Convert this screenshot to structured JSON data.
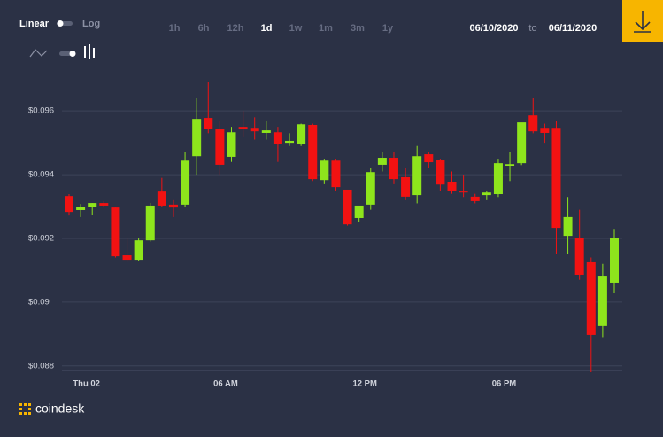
{
  "controls": {
    "scale_options": [
      "Linear",
      "Log"
    ],
    "timeframes": [
      "1h",
      "6h",
      "12h",
      "1d",
      "1w",
      "1m",
      "3m",
      "1y"
    ],
    "active_timeframe": "1d",
    "date_from": "06/10/2020",
    "date_separator": "to",
    "date_to": "06/11/2020"
  },
  "chart_data": {
    "type": "candlestick",
    "categories": [
      null,
      "Thu 02",
      null,
      null,
      null,
      null,
      null,
      null,
      null,
      null,
      null,
      null,
      null,
      "06 AM",
      null,
      null,
      null,
      null,
      null,
      null,
      null,
      null,
      null,
      null,
      null,
      "12 PM",
      null,
      null,
      null,
      null,
      null,
      null,
      null,
      null,
      null,
      null,
      null,
      "06 PM",
      null,
      null,
      null,
      null,
      null,
      null,
      null,
      null,
      null,
      null
    ],
    "open": [
      0.09333,
      0.09289,
      0.093,
      0.09311,
      0.09297,
      0.09147,
      0.09133,
      0.09194,
      0.09347,
      0.09306,
      0.09306,
      0.09458,
      0.09578,
      0.09542,
      0.09456,
      0.0955,
      0.09547,
      0.09531,
      0.09533,
      0.095,
      0.09497,
      0.09556,
      0.09383,
      0.09444,
      0.09353,
      0.09264,
      0.09306,
      0.09431,
      0.09453,
      0.09392,
      0.09336,
      0.09464,
      0.09447,
      0.09378,
      0.09347,
      0.09331,
      0.09336,
      0.09339,
      0.09428,
      0.09436,
      0.09586,
      0.09547,
      0.09547,
      0.09208,
      0.092,
      0.09125,
      0.08925,
      0.09061
    ],
    "high": [
      0.09339,
      0.09308,
      0.09311,
      0.09317,
      0.09297,
      0.092,
      0.092,
      0.09311,
      0.0939,
      0.0932,
      0.0947,
      0.0964,
      0.0969,
      0.0957,
      0.0955,
      0.096,
      0.0958,
      0.0957,
      0.0955,
      0.0953,
      0.0956,
      0.0956,
      0.0945,
      0.0945,
      0.09353,
      0.093,
      0.0942,
      0.0947,
      0.0947,
      0.0942,
      0.0949,
      0.0947,
      0.0945,
      0.0941,
      0.094,
      0.0934,
      0.0935,
      0.0945,
      0.0947,
      0.0956,
      0.0964,
      0.0956,
      0.0957,
      0.0933,
      0.0929,
      0.0914,
      0.0912,
      0.0923
    ],
    "low": [
      0.09272,
      0.09267,
      0.09275,
      0.09297,
      0.0914,
      0.09125,
      0.09128,
      0.0919,
      0.093,
      0.09267,
      0.093,
      0.094,
      0.0953,
      0.094,
      0.0944,
      0.0952,
      0.0951,
      0.0951,
      0.0944,
      0.0949,
      0.0949,
      0.0938,
      0.0937,
      0.0935,
      0.0924,
      0.0925,
      0.0929,
      0.0941,
      0.0937,
      0.0932,
      0.0931,
      0.0942,
      0.0935,
      0.0934,
      0.0933,
      0.0931,
      0.0932,
      0.0933,
      0.0938,
      0.0943,
      0.0953,
      0.095,
      0.0915,
      0.0915,
      0.0907,
      0.0878,
      0.0889,
      0.0903
    ],
    "close": [
      0.09283,
      0.093,
      0.09311,
      0.09303,
      0.09144,
      0.09133,
      0.09194,
      0.09303,
      0.09303,
      0.09297,
      0.09444,
      0.09575,
      0.09542,
      0.09431,
      0.09533,
      0.09542,
      0.09536,
      0.09539,
      0.09497,
      0.09506,
      0.09558,
      0.09386,
      0.09444,
      0.09361,
      0.09244,
      0.09303,
      0.09408,
      0.09453,
      0.09386,
      0.09331,
      0.09458,
      0.09439,
      0.09369,
      0.0935,
      0.09344,
      0.09317,
      0.09344,
      0.09436,
      0.09433,
      0.09564,
      0.09536,
      0.09531,
      0.09233,
      0.09267,
      0.09086,
      0.08897,
      0.09083,
      0.092
    ],
    "up_color": "#8ee51c",
    "down_color": "#f21212",
    "ylim": [
      0.0878,
      0.0967
    ],
    "yticks": [
      {
        "value": 0.088,
        "label": "$0.088"
      },
      {
        "value": 0.09,
        "label": "$0.09"
      },
      {
        "value": 0.092,
        "label": "$0.092"
      },
      {
        "value": 0.094,
        "label": "$0.094"
      },
      {
        "value": 0.096,
        "label": "$0.096"
      }
    ],
    "grid": true
  },
  "footer": {
    "brand": "coindesk"
  }
}
